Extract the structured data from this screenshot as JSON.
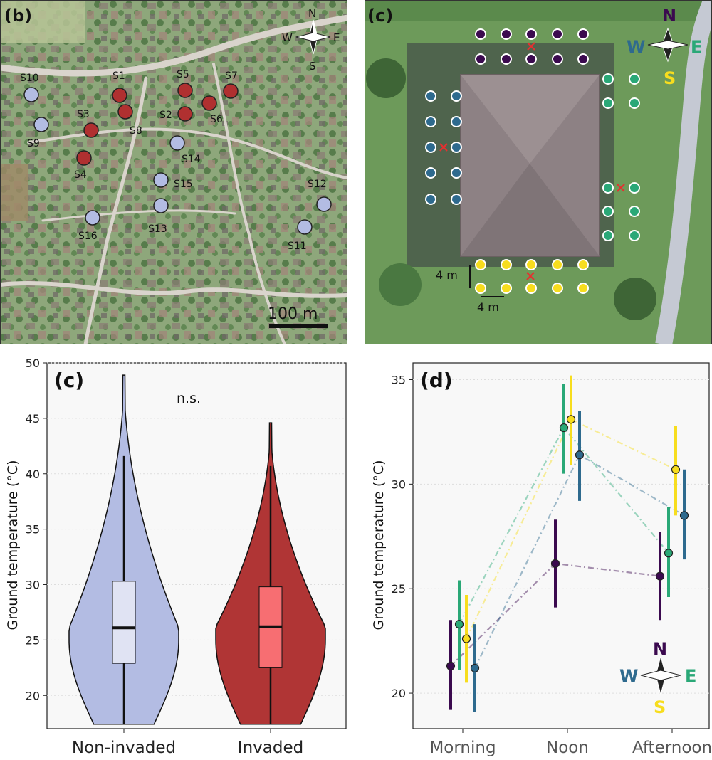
{
  "panel_b": {
    "label": "(b)",
    "compass": {
      "n": "N",
      "s": "S",
      "e": "E",
      "w": "W"
    },
    "scale_label": "100 m",
    "sites": [
      {
        "id": "S1",
        "status": "invaded"
      },
      {
        "id": "S2",
        "status": "invaded"
      },
      {
        "id": "S3",
        "status": "invaded"
      },
      {
        "id": "S4",
        "status": "invaded"
      },
      {
        "id": "S5",
        "status": "invaded"
      },
      {
        "id": "S6",
        "status": "invaded"
      },
      {
        "id": "S7",
        "status": "invaded"
      },
      {
        "id": "S8",
        "status": "invaded"
      },
      {
        "id": "S9",
        "status": "non-invaded"
      },
      {
        "id": "S10",
        "status": "non-invaded"
      },
      {
        "id": "S11",
        "status": "non-invaded"
      },
      {
        "id": "S12",
        "status": "non-invaded"
      },
      {
        "id": "S13",
        "status": "non-invaded"
      },
      {
        "id": "S14",
        "status": "non-invaded"
      },
      {
        "id": "S15",
        "status": "non-invaded"
      },
      {
        "id": "S16",
        "status": "non-invaded"
      }
    ],
    "colors": {
      "invaded": "#b03030",
      "non_invaded": "#b3bce3"
    }
  },
  "panel_c_map": {
    "label": "(c)",
    "compass": {
      "n": "N",
      "s": "S",
      "e": "E",
      "w": "W"
    },
    "scale_v": "4 m",
    "scale_h": "4 m",
    "colors": {
      "N": "#3b0a4f",
      "E": "#2aa877",
      "S": "#f7dd1e",
      "W": "#2e6a8e",
      "marker": "#e53030"
    }
  },
  "chart_data": [
    {
      "type": "violin",
      "panel_label": "(c)",
      "ylabel": "Ground temperature (°C)",
      "ylim": [
        17,
        50
      ],
      "yticks": [
        20,
        25,
        30,
        35,
        40,
        45,
        50
      ],
      "annotation": "n.s.",
      "categories": [
        "Non-invaded",
        "Invaded"
      ],
      "series": [
        {
          "name": "Non-invaded",
          "min": 17.4,
          "max": 48.9,
          "q1": 22.9,
          "median": 26.1,
          "q3": 30.3,
          "whisker_low": 17.4,
          "whisker_high": 41.6,
          "fill": "#b3bce3",
          "box_fill": "#e0e3f3"
        },
        {
          "name": "Invaded",
          "min": 17.4,
          "max": 44.6,
          "q1": 22.5,
          "median": 26.2,
          "q3": 29.8,
          "whisker_low": 17.4,
          "whisker_high": 40.7,
          "fill": "#b03535",
          "box_fill": "#f76e72"
        }
      ]
    },
    {
      "type": "line",
      "panel_label": "(d)",
      "ylabel": "Ground temperature (°C)",
      "ylim": [
        18.3,
        35.8
      ],
      "yticks": [
        20,
        25,
        30,
        35
      ],
      "categories": [
        "Morning",
        "Noon",
        "Afternoon"
      ],
      "series": [
        {
          "name": "N",
          "color": "#3b0a4f",
          "mean": [
            21.3,
            26.2,
            25.6
          ],
          "lower": [
            19.2,
            24.1,
            23.5
          ],
          "upper": [
            23.5,
            28.3,
            27.7
          ]
        },
        {
          "name": "E",
          "color": "#2aa877",
          "mean": [
            23.3,
            32.7,
            26.7
          ],
          "lower": [
            21.1,
            30.5,
            24.6
          ],
          "upper": [
            25.4,
            34.8,
            28.9
          ]
        },
        {
          "name": "S",
          "color": "#f7dd1e",
          "mean": [
            22.6,
            33.1,
            30.7
          ],
          "lower": [
            20.5,
            30.9,
            28.5
          ],
          "upper": [
            24.7,
            35.2,
            32.8
          ]
        },
        {
          "name": "W",
          "color": "#2e6a8e",
          "mean": [
            21.2,
            31.4,
            28.5
          ],
          "lower": [
            19.1,
            29.2,
            26.4
          ],
          "upper": [
            23.3,
            33.5,
            30.7
          ]
        }
      ],
      "legend": {
        "type": "compass",
        "placement": "bottom-right",
        "n": "N",
        "s": "S",
        "e": "E",
        "w": "W"
      }
    }
  ]
}
